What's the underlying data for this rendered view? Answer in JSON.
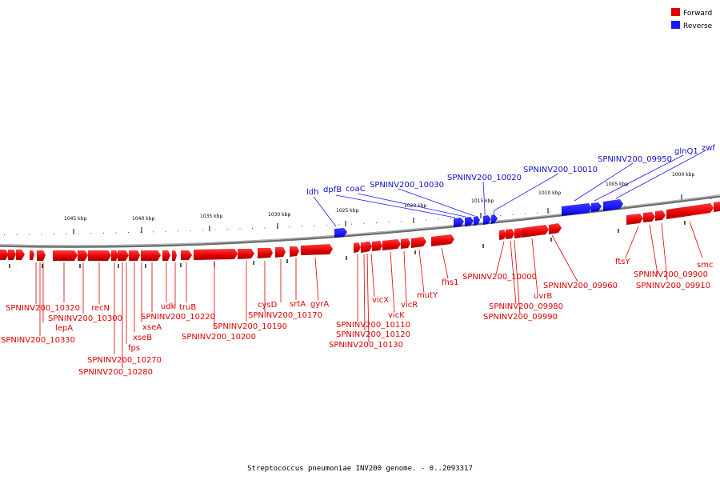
{
  "caption": "Streptococcus pneumoniae INV200 genome. - 0..2093317",
  "legend": [
    {
      "label": "Forward",
      "color": "#e00000"
    },
    {
      "label": "Reverse",
      "color": "#1a1aff"
    }
  ],
  "ticks": [
    "1045 kbp",
    "1040 kbp",
    "1035 kbp",
    "1030 kbp",
    "1025 kbp",
    "1020 kbp",
    "1015 kbp",
    "1010 kbp",
    "1005 kbp",
    "1000 kbp"
  ],
  "forward_labels": [
    "SPNINV200_10320",
    "SPNINV200_10330",
    "lepA",
    "SPNINV200_10300",
    "recN",
    "fps",
    "xseB",
    "SPNINV200_10270",
    "SPNINV200_10280",
    "xseA",
    "SPNINV200_10220",
    "udk",
    "truB",
    "SPNINV200_10200",
    "SPNINV200_10190",
    "cysD",
    "SPNINV200_10170",
    "srtA",
    "gyrA",
    "vicX",
    "SPNINV200_10110",
    "SPNINV200_10120",
    "SPNINV200_10130",
    "vicK",
    "vicR",
    "mutY",
    "fhs1",
    "SPNINV200_10000",
    "SPNINV200_09980",
    "SPNINV200_09990",
    "uvrB",
    "SPNINV200_09960",
    "ftsY",
    "SPNINV200_09900",
    "SPNINV200_09910",
    "smc"
  ],
  "reverse_labels": [
    "ldh",
    "dpfB",
    "coaC",
    "SPNINV200_10030",
    "SPNINV200_10020",
    "SPNINV200_10010",
    "SPNINV200_09950",
    "glnQ1",
    "zwf"
  ]
}
